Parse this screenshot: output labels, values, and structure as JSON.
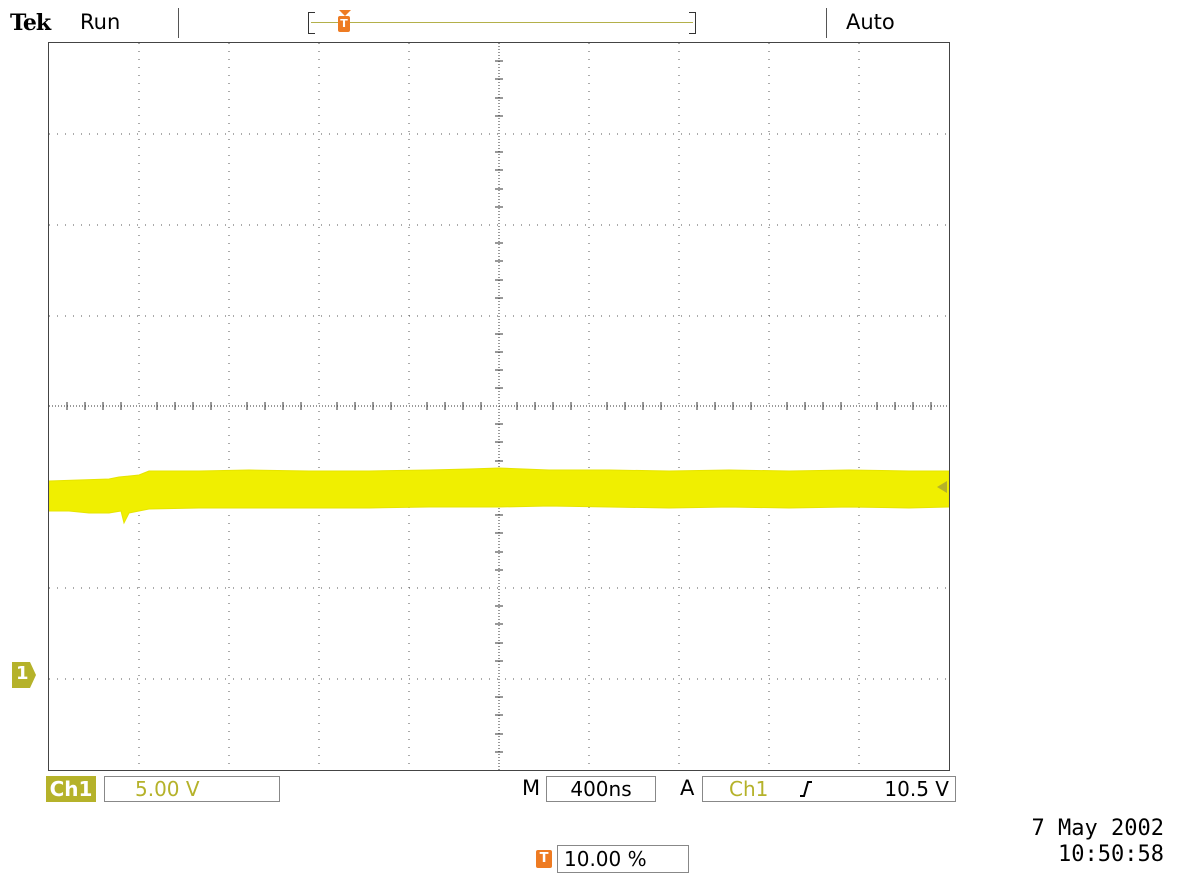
{
  "header": {
    "brand": "Tek",
    "run_state": "Run",
    "trigger_mode": "Auto",
    "record_trigger_marker": "T"
  },
  "screen": {
    "trigger_marker": "T",
    "ch1_marker": "1",
    "trace_color": "#f0ef00",
    "grid_divisions_x": 10,
    "grid_divisions_y": 8
  },
  "footer": {
    "ch1_label": "Ch1",
    "ch1_scale": "5.00 V",
    "timebase_prefix": "M",
    "timebase": "400ns",
    "trigger_prefix": "A",
    "trigger_source": "Ch1",
    "trigger_slope_icon": "rising-edge-icon",
    "trigger_level": "10.5 V",
    "position_marker": "T",
    "trigger_position": "10.00 %",
    "date": "7 May 2002",
    "time": "10:50:58"
  },
  "colors": {
    "channel1": "#b5b22a",
    "trace": "#f0ef00",
    "trigger_marker": "#ee7b22"
  }
}
